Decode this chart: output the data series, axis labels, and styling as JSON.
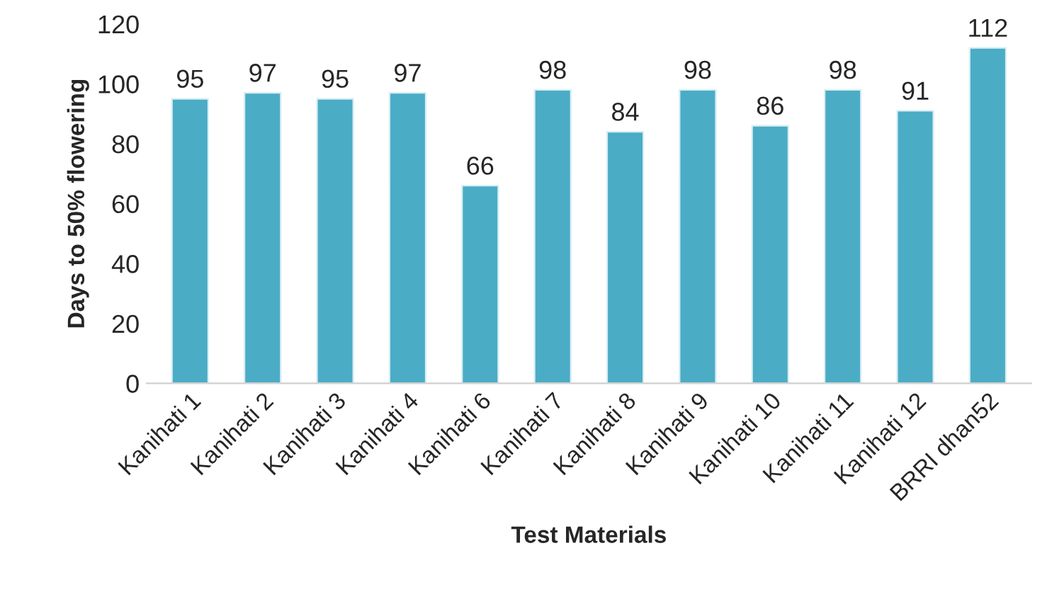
{
  "chart_data": {
    "type": "bar",
    "xlabel": "Test Materials",
    "ylabel": "Days to 50% flowering",
    "categories": [
      "Kanihati 1",
      "Kanihati 2",
      "Kanihati 3",
      "Kanihati 4",
      "Kanihati 6",
      "Kanihati 7",
      "Kanihati 8",
      "Kanihati 9",
      "Kanihati 10",
      "Kanihati 11",
      "Kanihati 12",
      "BRRI dhan52"
    ],
    "values": [
      95,
      97,
      95,
      97,
      66,
      98,
      84,
      98,
      86,
      98,
      91,
      112
    ],
    "color": "#4bacc6",
    "ylim": [
      0,
      120
    ],
    "yticks": [
      0,
      20,
      40,
      60,
      80,
      100,
      120
    ],
    "grid": false,
    "data_labels": true
  }
}
